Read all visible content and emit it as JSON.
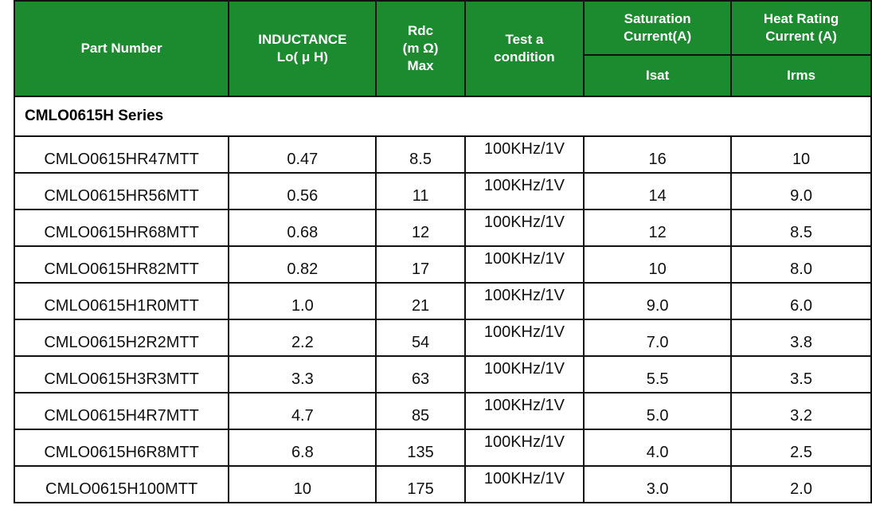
{
  "header": {
    "part_number": "Part Number",
    "inductance_line1": "INDUCTANCE",
    "inductance_line2": "Lo( μ H)",
    "rdc_line1": "Rdc",
    "rdc_line2": "(m Ω)",
    "rdc_line3": "Max",
    "test_line1": "Test a",
    "test_line2": "condition",
    "sat_line1": "Saturation",
    "sat_line2": "Current(A)",
    "sat_sub": "Isat",
    "heat_line1": "Heat Rating",
    "heat_line2": "Current (A)",
    "heat_sub": "Irms"
  },
  "series_label": "CMLO0615H Series",
  "rows": [
    {
      "part": "CMLO0615HR47MTT",
      "inductance": "0.47",
      "rdc": "8.5",
      "condition": "100KHz/1V",
      "isat": "16",
      "irms": "10"
    },
    {
      "part": "CMLO0615HR56MTT",
      "inductance": "0.56",
      "rdc": "11",
      "condition": "100KHz/1V",
      "isat": "14",
      "irms": "9.0"
    },
    {
      "part": "CMLO0615HR68MTT",
      "inductance": "0.68",
      "rdc": "12",
      "condition": "100KHz/1V",
      "isat": "12",
      "irms": "8.5"
    },
    {
      "part": "CMLO0615HR82MTT",
      "inductance": "0.82",
      "rdc": "17",
      "condition": "100KHz/1V",
      "isat": "10",
      "irms": "8.0"
    },
    {
      "part": "CMLO0615H1R0MTT",
      "inductance": "1.0",
      "rdc": "21",
      "condition": "100KHz/1V",
      "isat": "9.0",
      "irms": "6.0"
    },
    {
      "part": "CMLO0615H2R2MTT",
      "inductance": "2.2",
      "rdc": "54",
      "condition": "100KHz/1V",
      "isat": "7.0",
      "irms": "3.8"
    },
    {
      "part": "CMLO0615H3R3MTT",
      "inductance": "3.3",
      "rdc": "63",
      "condition": "100KHz/1V",
      "isat": "5.5",
      "irms": "3.5"
    },
    {
      "part": "CMLO0615H4R7MTT",
      "inductance": "4.7",
      "rdc": "85",
      "condition": "100KHz/1V",
      "isat": "5.0",
      "irms": "3.2"
    },
    {
      "part": "CMLO0615H6R8MTT",
      "inductance": "6.8",
      "rdc": "135",
      "condition": "100KHz/1V",
      "isat": "4.0",
      "irms": "2.5"
    },
    {
      "part": "CMLO0615H100MTT",
      "inductance": "10",
      "rdc": "175",
      "condition": "100KHz/1V",
      "isat": "3.0",
      "irms": "2.0"
    }
  ],
  "colors": {
    "header_bg": "#1c8a2e",
    "header_text": "#ffffff",
    "border": "#111111"
  }
}
